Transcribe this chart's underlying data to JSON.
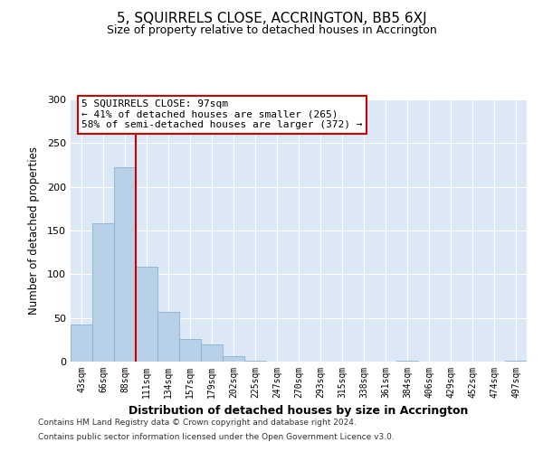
{
  "title": "5, SQUIRRELS CLOSE, ACCRINGTON, BB5 6XJ",
  "subtitle": "Size of property relative to detached houses in Accrington",
  "xlabel": "Distribution of detached houses by size in Accrington",
  "ylabel": "Number of detached properties",
  "bar_labels": [
    "43sqm",
    "66sqm",
    "88sqm",
    "111sqm",
    "134sqm",
    "157sqm",
    "179sqm",
    "202sqm",
    "225sqm",
    "247sqm",
    "270sqm",
    "293sqm",
    "315sqm",
    "338sqm",
    "361sqm",
    "384sqm",
    "406sqm",
    "429sqm",
    "452sqm",
    "474sqm",
    "497sqm"
  ],
  "bar_values": [
    42,
    158,
    222,
    109,
    57,
    26,
    20,
    6,
    1,
    0,
    0,
    0,
    0,
    0,
    0,
    1,
    0,
    0,
    0,
    0,
    1
  ],
  "bar_color": "#b8d0e8",
  "bar_edge_color": "#8ab0d0",
  "background_color": "#dce8f5",
  "vline_color": "#cc0000",
  "annotation_title": "5 SQUIRRELS CLOSE: 97sqm",
  "annotation_line1": "← 41% of detached houses are smaller (265)",
  "annotation_line2": "58% of semi-detached houses are larger (372) →",
  "annotation_box_facecolor": "#ffffff",
  "annotation_box_edgecolor": "#cc0000",
  "ylim": [
    0,
    300
  ],
  "yticks": [
    0,
    50,
    100,
    150,
    200,
    250,
    300
  ],
  "footer1": "Contains HM Land Registry data © Crown copyright and database right 2024.",
  "footer2": "Contains public sector information licensed under the Open Government Licence v3.0."
}
